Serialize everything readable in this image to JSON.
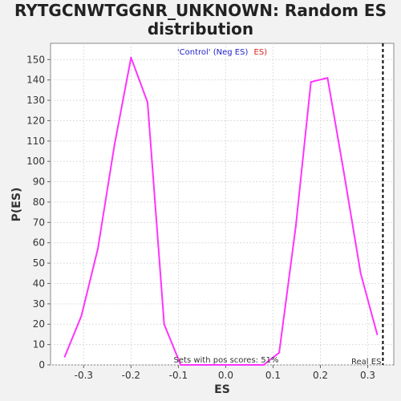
{
  "chart_data": {
    "type": "line",
    "title_line1": "RYTGCNWTGGNR_UNKNOWN: Random ES",
    "title_line2": "distribution",
    "xlabel": "ES",
    "ylabel": "P(ES)",
    "xlim": [
      -0.37,
      0.355
    ],
    "ylim": [
      0,
      158
    ],
    "x_ticks": [
      -0.3,
      -0.2,
      -0.1,
      0.0,
      0.1,
      0.2,
      0.3
    ],
    "x_tick_labels": [
      "-0.3",
      "-0.2",
      "-0.1",
      "0.0",
      "0.1",
      "0.2",
      "0.3"
    ],
    "y_ticks": [
      0,
      10,
      20,
      30,
      40,
      50,
      60,
      70,
      80,
      90,
      100,
      110,
      120,
      130,
      140,
      150
    ],
    "y_tick_labels": [
      "0",
      "10",
      "20",
      "30",
      "40",
      "50",
      "60",
      "70",
      "80",
      "90",
      "100",
      "110",
      "120",
      "130",
      "140",
      "150"
    ],
    "grid": true,
    "legend": {
      "placement": "top-center",
      "part1": "'Control' (Neg ES)",
      "part2": "ES)",
      "color1": "#2222cc",
      "color2": "#dd2222"
    },
    "series": [
      {
        "color": "#ff33ff",
        "x": [
          -0.34,
          -0.305,
          -0.27,
          -0.235,
          -0.2,
          -0.165,
          -0.13,
          -0.095,
          -0.06,
          -0.025,
          0.01,
          0.045,
          0.08,
          0.113,
          0.148,
          0.18,
          0.215,
          0.25,
          0.285,
          0.32
        ],
        "y": [
          4,
          24,
          57,
          108,
          151,
          129,
          20,
          0,
          0,
          0,
          0,
          0,
          0,
          6,
          68,
          139,
          141,
          94,
          45,
          15
        ]
      }
    ],
    "real_es": {
      "x": 0.332,
      "label": "Real ES"
    },
    "annotation": "Sets with pos scores: 51%"
  }
}
